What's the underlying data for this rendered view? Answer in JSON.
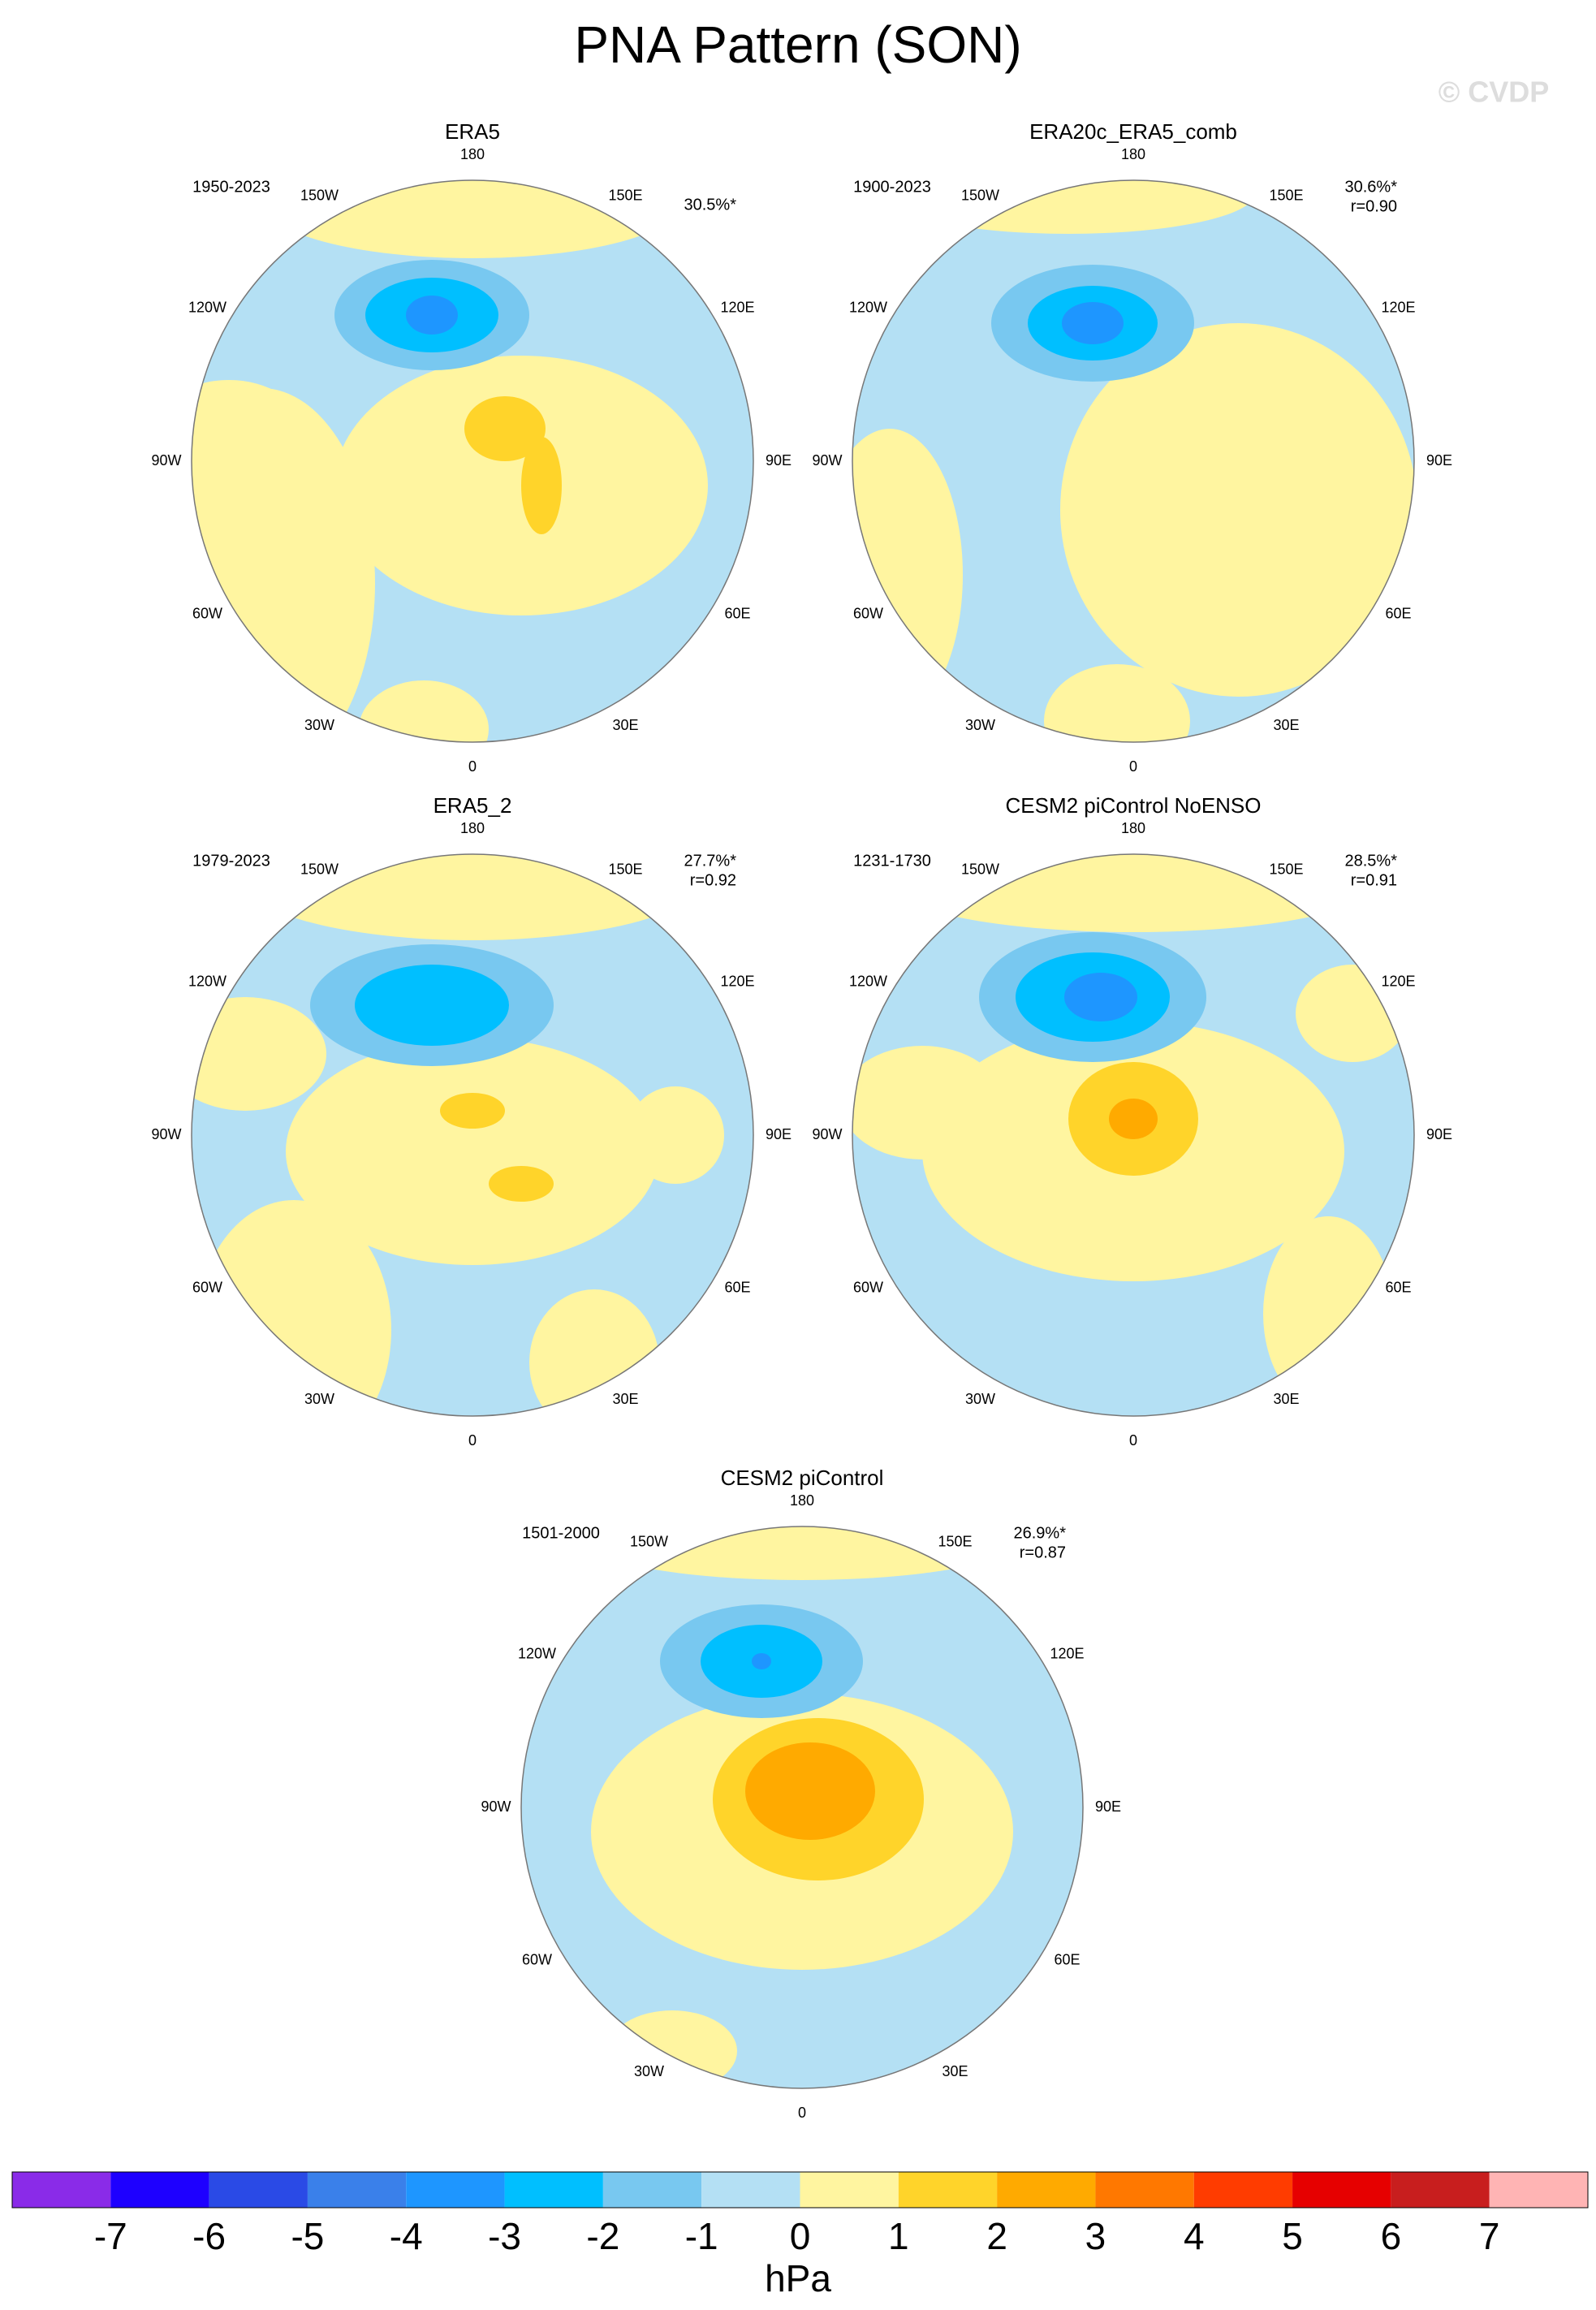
{
  "title": "PNA Pattern (SON)",
  "watermark": "© CVDP",
  "lon_labels": [
    "180",
    "150E",
    "120E",
    "90E",
    "60E",
    "30E",
    "0",
    "30W",
    "60W",
    "90W",
    "120W",
    "150W"
  ],
  "panels": [
    {
      "title": "ERA5",
      "period": "1950-2023",
      "variance": "30.5%*"
    },
    {
      "title": "ERA20c_ERA5_comb",
      "period": "1900-2023",
      "variance": "30.6%*",
      "r": "r=0.90"
    },
    {
      "title": "ERA5_2",
      "period": "1979-2023",
      "variance": "27.7%*",
      "r": "r=0.92"
    },
    {
      "title": "CESM2 piControl NoENSO",
      "period": "1231-1730",
      "variance": "28.5%*",
      "r": "r=0.91"
    },
    {
      "title": "CESM2 piControl",
      "period": "1501-2000",
      "variance": "26.9%*",
      "r": "r=0.87"
    }
  ],
  "colorbar": {
    "levels": [
      -7,
      -6,
      -5,
      -4,
      -3,
      -2,
      -1,
      0,
      1,
      2,
      3,
      4,
      5,
      6,
      7
    ],
    "colors": [
      "#8a2be8",
      "#1e00ff",
      "#2a4ae6",
      "#3a80ea",
      "#1e96ff",
      "#00bfff",
      "#78c8f0",
      "#b4e0f4",
      "#fff5a0",
      "#ffd42a",
      "#ffaa00",
      "#ff7800",
      "#ff3c00",
      "#e60000",
      "#c81e1e",
      "#ffb4b4"
    ],
    "unit": "hPa"
  }
}
